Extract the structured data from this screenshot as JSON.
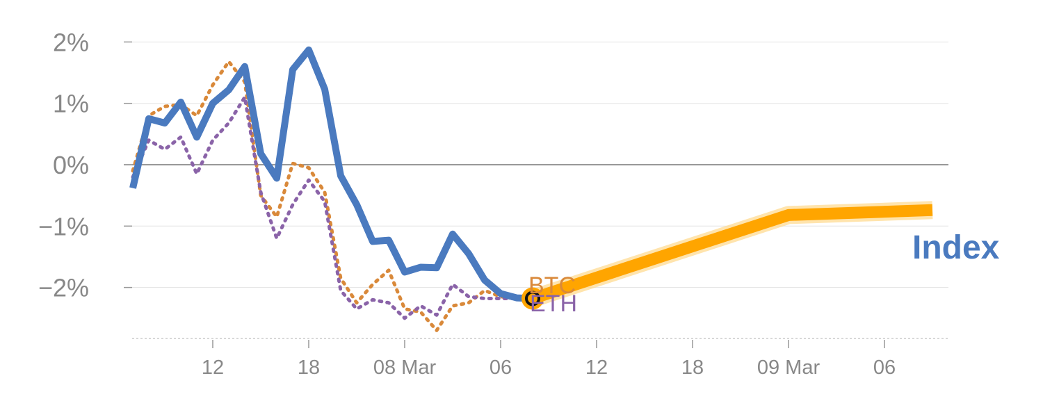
{
  "chart_data": {
    "type": "line",
    "title": "",
    "xlabel": "",
    "ylabel": "",
    "ylim": [
      -2.8,
      2.3
    ],
    "y_ticks": [
      {
        "value": 2,
        "label": "2%"
      },
      {
        "value": 1,
        "label": "1%"
      },
      {
        "value": 0,
        "label": "0%"
      },
      {
        "value": -1,
        "label": "−1%"
      },
      {
        "value": -2,
        "label": "−2%"
      }
    ],
    "x_range": [
      0,
      52
    ],
    "x_ticks": [
      {
        "x": 6,
        "label": "12"
      },
      {
        "x": 12,
        "label": "18"
      },
      {
        "x": 18,
        "label": "08 Mar"
      },
      {
        "x": 24,
        "label": "06"
      },
      {
        "x": 30,
        "label": "12"
      },
      {
        "x": 36,
        "label": "18"
      },
      {
        "x": 42,
        "label": "09 Mar"
      },
      {
        "x": 48,
        "label": "06"
      }
    ],
    "grid": true,
    "zero_line": true,
    "series": [
      {
        "name": "Index",
        "style": "solid",
        "color": "#4a7abf",
        "x": [
          1,
          2,
          3,
          4,
          5,
          6,
          7,
          8,
          9,
          10,
          11,
          12,
          13,
          14,
          15,
          16,
          17,
          18,
          19,
          20,
          21,
          22,
          23,
          24,
          25,
          26
        ],
        "values": [
          -0.38,
          0.75,
          0.68,
          1.02,
          0.45,
          1.0,
          1.22,
          1.6,
          0.18,
          -0.22,
          1.55,
          1.87,
          1.23,
          -0.18,
          -0.65,
          -1.25,
          -1.23,
          -1.75,
          -1.67,
          -1.68,
          -1.13,
          -1.45,
          -1.88,
          -2.1,
          -2.17,
          -2.18
        ]
      },
      {
        "name": "BTC",
        "style": "dotted",
        "color": "#d9893a",
        "x": [
          1,
          2,
          3,
          4,
          5,
          6,
          7,
          8,
          9,
          10,
          11,
          12,
          13,
          14,
          15,
          16,
          17,
          18,
          19,
          20,
          21,
          22,
          23,
          24,
          25,
          26
        ],
        "values": [
          -0.1,
          0.8,
          0.95,
          0.98,
          0.8,
          1.3,
          1.68,
          1.35,
          -0.5,
          -0.85,
          0.02,
          -0.05,
          -0.45,
          -1.85,
          -2.25,
          -1.95,
          -1.72,
          -2.35,
          -2.4,
          -2.7,
          -2.3,
          -2.25,
          -2.05,
          -2.15,
          -2.18,
          -2.18
        ]
      },
      {
        "name": "ETH",
        "style": "dotted",
        "color": "#8a63a8",
        "x": [
          1,
          2,
          3,
          4,
          5,
          6,
          7,
          8,
          9,
          10,
          11,
          12,
          13,
          14,
          15,
          16,
          17,
          18,
          19,
          20,
          21,
          22,
          23,
          24,
          25,
          26
        ],
        "values": [
          -0.2,
          0.4,
          0.25,
          0.45,
          -0.15,
          0.4,
          0.68,
          1.1,
          -0.45,
          -1.2,
          -0.65,
          -0.25,
          -0.6,
          -2.05,
          -2.35,
          -2.2,
          -2.25,
          -2.5,
          -2.3,
          -2.45,
          -1.95,
          -2.15,
          -2.18,
          -2.18,
          -2.18,
          -2.18
        ]
      },
      {
        "name": "Index",
        "style": "projection",
        "color": "#ffa500",
        "x": [
          26,
          42,
          51
        ],
        "values": [
          -2.18,
          -0.82,
          -0.74
        ]
      }
    ],
    "end_labels": [
      {
        "text": "BTC",
        "color": "#d9893a"
      },
      {
        "text": "ETH",
        "color": "#8a63a8"
      },
      {
        "text": "Index",
        "color": "#4a7abf"
      }
    ]
  }
}
